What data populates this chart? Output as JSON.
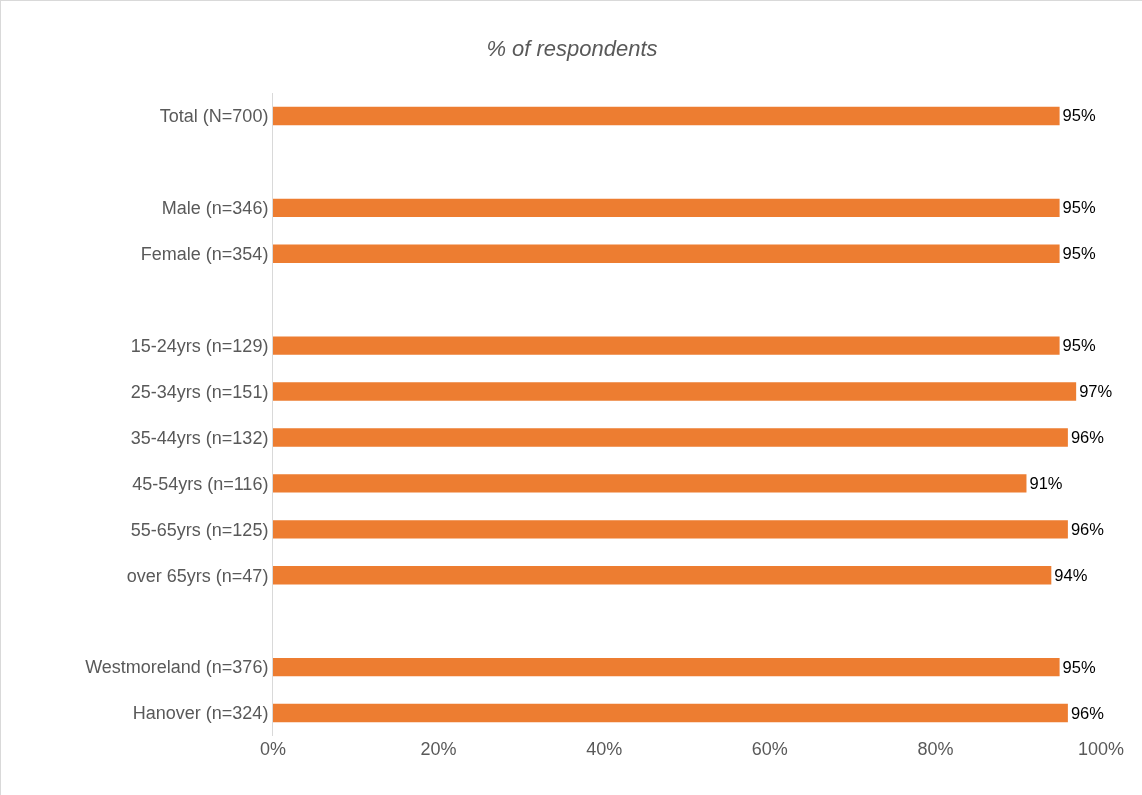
{
  "chart_data": {
    "type": "bar",
    "orientation": "horizontal",
    "title": "% of respondents",
    "categories": [
      "Total (N=700)",
      null,
      "Male (n=346)",
      "Female (n=354)",
      null,
      "15-24yrs (n=129)",
      "25-34yrs (n=151)",
      "35-44yrs (n=132)",
      "45-54yrs (n=116)",
      "55-65yrs (n=125)",
      "over 65yrs (n=47)",
      null,
      "Westmoreland (n=376)",
      "Hanover (n=324)"
    ],
    "values": [
      95,
      null,
      95,
      95,
      null,
      95,
      97,
      96,
      91,
      96,
      94,
      null,
      95,
      96
    ],
    "color": "#ed7d31",
    "xlim": [
      0,
      100
    ],
    "xticks": [
      {
        "value": 0,
        "label": "0%"
      },
      {
        "value": 20,
        "label": "20%"
      },
      {
        "value": 40,
        "label": "40%"
      },
      {
        "value": 60,
        "label": "60%"
      },
      {
        "value": 80,
        "label": "80%"
      },
      {
        "value": 100,
        "label": "100%"
      }
    ],
    "value_labels": [
      "95%",
      null,
      "95%",
      "95%",
      null,
      "95%",
      "97%",
      "96%",
      "91%",
      "96%",
      "94%",
      null,
      "95%",
      "96%"
    ]
  }
}
